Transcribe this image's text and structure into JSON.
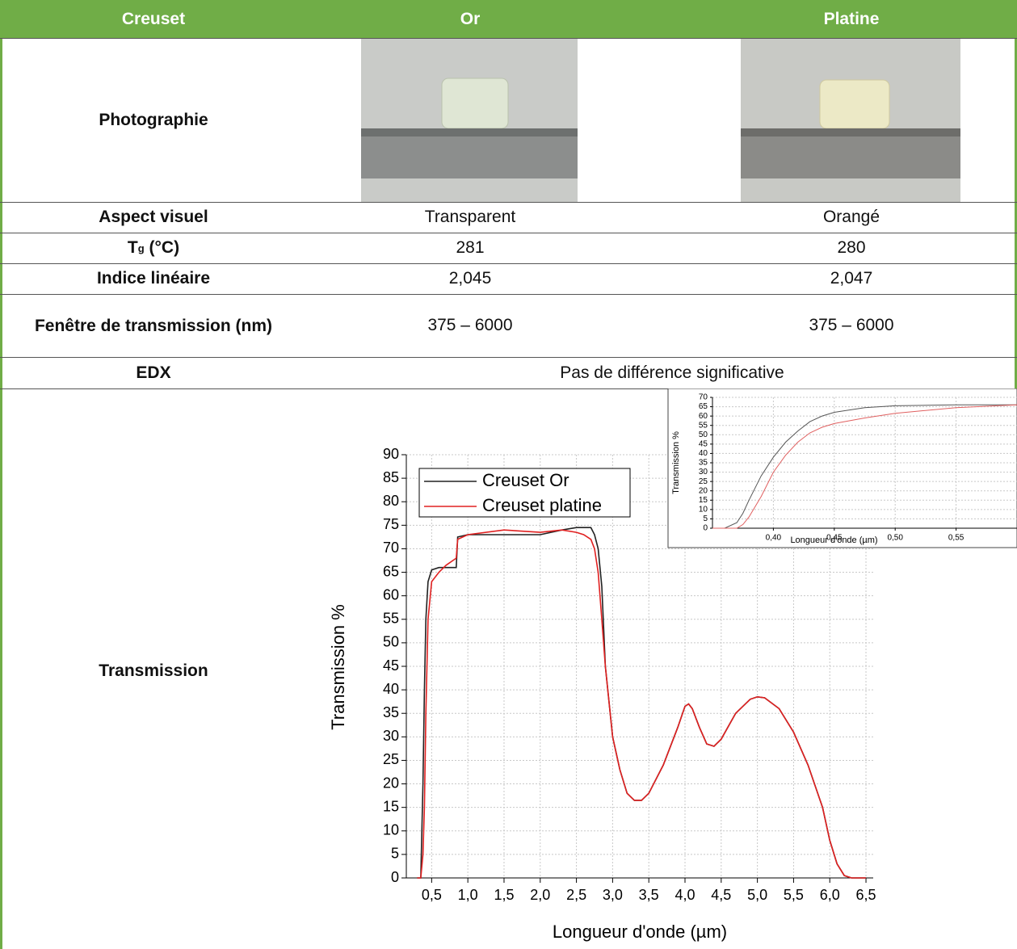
{
  "table": {
    "header": [
      "Creuset",
      "Or",
      "Platine"
    ],
    "rows": [
      {
        "label": "Photographie"
      },
      {
        "label": "Aspect visuel",
        "values": [
          "Transparent",
          "Orangé"
        ]
      },
      {
        "label": {
          "symbol": "T",
          "subscript": "g",
          "unit": "(°C)"
        },
        "values": [
          "281",
          "280"
        ]
      },
      {
        "label": "Indice linéaire",
        "values": [
          "2,045",
          "2,047"
        ]
      },
      {
        "label": "Fenêtre de transmission (nm)",
        "values": [
          "375 – 6000",
          "375 – 6000"
        ]
      },
      {
        "label": "EDX",
        "value": "Pas de différence significative"
      },
      {
        "label": "Transmission"
      }
    ]
  },
  "chart_data": [
    {
      "type": "line",
      "x_label": "Longueur d'onde (µm)",
      "y_label": "Transmission %",
      "legend": "upper-left",
      "grid": true,
      "xlim": [
        0.15,
        6.6
      ],
      "ylim": [
        0,
        90
      ],
      "xticks": [
        {
          "value": 0.5,
          "label": "0,5"
        },
        {
          "value": 1.0,
          "label": "1,0"
        },
        {
          "value": 1.5,
          "label": "1,5"
        },
        {
          "value": 2.0,
          "label": "2,0"
        },
        {
          "value": 2.5,
          "label": "2,5"
        },
        {
          "value": 3.0,
          "label": "3,0"
        },
        {
          "value": 3.5,
          "label": "3,5"
        },
        {
          "value": 4.0,
          "label": "4,0"
        },
        {
          "value": 4.5,
          "label": "4,5"
        },
        {
          "value": 5.0,
          "label": "5,0"
        },
        {
          "value": 5.5,
          "label": "5,5"
        },
        {
          "value": 6.0,
          "label": "6,0"
        },
        {
          "value": 6.5,
          "label": "6,5"
        }
      ],
      "yticks": [
        0,
        5,
        10,
        15,
        20,
        25,
        30,
        35,
        40,
        45,
        50,
        55,
        60,
        65,
        70,
        75,
        80,
        85,
        90
      ],
      "x": [
        0.3,
        0.35,
        0.38,
        0.4,
        0.42,
        0.45,
        0.5,
        0.6,
        0.7,
        0.84,
        0.86,
        1.0,
        1.5,
        2.0,
        2.3,
        2.5,
        2.6,
        2.7,
        2.75,
        2.8,
        2.85,
        2.9,
        3.0,
        3.1,
        3.2,
        3.3,
        3.4,
        3.5,
        3.7,
        3.9,
        4.0,
        4.05,
        4.1,
        4.2,
        4.3,
        4.4,
        4.5,
        4.7,
        4.9,
        5.0,
        5.1,
        5.3,
        5.5,
        5.7,
        5.9,
        6.0,
        6.1,
        6.2,
        6.3,
        6.5
      ],
      "series": [
        {
          "name": "Creuset Or",
          "color": "#222222",
          "values": [
            0,
            0,
            20,
            40,
            55,
            63,
            65.5,
            66,
            66,
            66,
            72.5,
            73,
            73,
            73,
            74,
            74.5,
            74.5,
            74.5,
            73,
            70,
            62,
            45,
            30,
            23,
            18,
            16.5,
            16.5,
            18,
            24,
            32,
            36.5,
            37,
            36,
            32,
            28.5,
            28,
            29.5,
            35,
            38,
            38.5,
            38.3,
            36,
            31,
            24,
            15,
            8,
            3,
            0.5,
            0,
            0
          ]
        },
        {
          "name": "Creuset platine",
          "color": "#e02020",
          "values": [
            0,
            0,
            5,
            15,
            35,
            55,
            63,
            65,
            66.5,
            68,
            72,
            73,
            74,
            73.5,
            74,
            73.5,
            73,
            72,
            70,
            65,
            55,
            45,
            30,
            23,
            18,
            16.5,
            16.5,
            18,
            24,
            32,
            36.5,
            37,
            36,
            32,
            28.5,
            28,
            29.5,
            35,
            38,
            38.5,
            38.3,
            36,
            31,
            24,
            15,
            8,
            3,
            0.5,
            0,
            0
          ]
        }
      ]
    },
    {
      "type": "line",
      "x_label": "Longueur d'onde (µm)",
      "y_label": "Transmission %",
      "grid": true,
      "xlim": [
        0.35,
        0.6
      ],
      "ylim": [
        0,
        70
      ],
      "xticks": [
        {
          "value": 0.4,
          "label": "0,40"
        },
        {
          "value": 0.45,
          "label": "0,45"
        },
        {
          "value": 0.5,
          "label": "0,50"
        },
        {
          "value": 0.55,
          "label": "0,55"
        }
      ],
      "yticks": [
        0,
        5,
        10,
        15,
        20,
        25,
        30,
        35,
        40,
        45,
        50,
        55,
        60,
        65,
        70
      ],
      "x": [
        0.35,
        0.36,
        0.37,
        0.375,
        0.38,
        0.39,
        0.4,
        0.41,
        0.42,
        0.43,
        0.44,
        0.45,
        0.475,
        0.5,
        0.55,
        0.6
      ],
      "series": [
        {
          "color": "#555555",
          "values": [
            0,
            0,
            3,
            8,
            15,
            28,
            38,
            46,
            52,
            57,
            60,
            62,
            64.5,
            65.5,
            66,
            66
          ]
        },
        {
          "color": "#e06060",
          "values": [
            0,
            0,
            0,
            2,
            6,
            17,
            30,
            39,
            46,
            51,
            54,
            56,
            59,
            61.5,
            64.5,
            66
          ]
        }
      ]
    }
  ]
}
